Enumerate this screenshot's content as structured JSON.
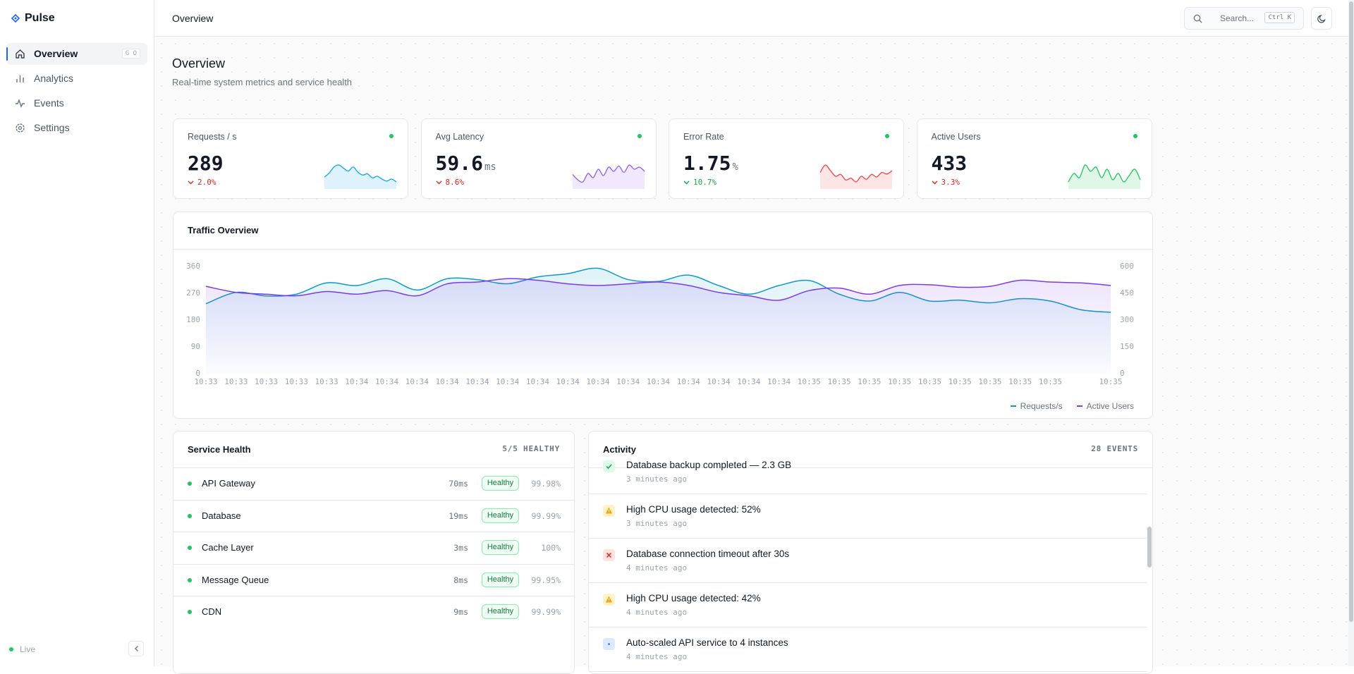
{
  "sidebar": {
    "brand": "Pulse",
    "nav": [
      {
        "label": "Overview",
        "shortcut": "G O"
      },
      {
        "label": "Analytics"
      },
      {
        "label": "Events"
      },
      {
        "label": "Settings"
      }
    ],
    "status": "Live"
  },
  "header": {
    "title": "Overview",
    "search": "Search...",
    "shortcut": "Ctrl K"
  },
  "page": {
    "title": "Overview",
    "subtitle": "Real-time system metrics and service health"
  },
  "kpis": [
    {
      "label": "Requests / s",
      "value": "289",
      "delta": "2.0%",
      "good": false,
      "color": "#0ea5e9",
      "spark": [
        260,
        270,
        285,
        290,
        282,
        275,
        285,
        272,
        265,
        268,
        258,
        262,
        255,
        250,
        255,
        248
      ]
    },
    {
      "label": "Avg Latency",
      "value": "59.6",
      "unit": "ms",
      "delta": "8.6%",
      "good": false,
      "color": "#8b5cf6",
      "spark": [
        55,
        50,
        48,
        56,
        52,
        60,
        54,
        62,
        58,
        63,
        57,
        64,
        60,
        62,
        58
      ]
    },
    {
      "label": "Error Rate",
      "value": "1.75",
      "unit": "%",
      "delta": "10.7%",
      "good": true,
      "color": "#ef4444",
      "spark": [
        1.9,
        2.1,
        1.95,
        1.8,
        1.85,
        1.7,
        1.75,
        1.65,
        1.8,
        1.72,
        1.85,
        1.78,
        1.9,
        1.86,
        1.95
      ]
    },
    {
      "label": "Active Users",
      "value": "433",
      "delta": "3.3%",
      "good": false,
      "color": "#22c55e",
      "spark": [
        420,
        440,
        430,
        460,
        445,
        455,
        430,
        450,
        425,
        440,
        420,
        435,
        450,
        425
      ]
    }
  ],
  "chart_data": {
    "type": "line",
    "title": "Traffic Overview",
    "categories": [
      "10:33",
      "10:33",
      "10:33",
      "10:33",
      "10:33",
      "10:34",
      "10:34",
      "10:34",
      "10:34",
      "10:34",
      "10:34",
      "10:34",
      "10:34",
      "10:34",
      "10:34",
      "10:34",
      "10:34",
      "10:34",
      "10:34",
      "10:34",
      "10:35",
      "10:35",
      "10:35",
      "10:35",
      "10:35",
      "10:35",
      "10:35",
      "10:35",
      "10:35",
      null,
      "10:35"
    ],
    "series": [
      {
        "name": "Requests/s",
        "color": "#0e9ac8",
        "values": [
          235,
          273,
          261,
          267,
          305,
          296,
          319,
          281,
          319,
          316,
          302,
          325,
          336,
          354,
          316,
          310,
          331,
          296,
          267,
          296,
          313,
          267,
          244,
          273,
          244,
          247,
          238,
          252,
          244,
          215,
          206
        ]
      },
      {
        "name": "Active Users",
        "color": "#7c3aed",
        "axis": "y2",
        "values": [
          489,
          455,
          445,
          436,
          460,
          445,
          465,
          436,
          503,
          513,
          532,
          523,
          503,
          494,
          503,
          513,
          494,
          455,
          436,
          411,
          465,
          479,
          445,
          494,
          498,
          484,
          489,
          523,
          513,
          508,
          494
        ]
      }
    ],
    "ylim": [
      0,
      360
    ],
    "yticks": [
      0,
      90,
      180,
      270,
      360
    ],
    "y2lim": [
      0,
      600
    ],
    "y2ticks": [
      0,
      150,
      300,
      450,
      600
    ],
    "legend": "bottom-right"
  },
  "services": {
    "title": "Service Health",
    "summary": "5/5 HEALTHY",
    "rows": [
      {
        "name": "API Gateway",
        "latency": "70ms",
        "status": "Healthy",
        "uptime": "99.98%"
      },
      {
        "name": "Database",
        "latency": "19ms",
        "status": "Healthy",
        "uptime": "99.99%"
      },
      {
        "name": "Cache Layer",
        "latency": "3ms",
        "status": "Healthy",
        "uptime": "100%"
      },
      {
        "name": "Message Queue",
        "latency": "8ms",
        "status": "Healthy",
        "uptime": "99.95%"
      },
      {
        "name": "CDN",
        "latency": "9ms",
        "status": "Healthy",
        "uptime": "99.99%"
      }
    ]
  },
  "activity": {
    "title": "Activity",
    "summary": "28 EVENTS",
    "items": [
      {
        "kind": "success",
        "text": "Database backup completed — 2.3 GB",
        "time": "3 minutes ago"
      },
      {
        "kind": "warning",
        "text": "High CPU usage detected: 52%",
        "time": "3 minutes ago"
      },
      {
        "kind": "error",
        "text": "Database connection timeout after 30s",
        "time": "4 minutes ago"
      },
      {
        "kind": "warning",
        "text": "High CPU usage detected: 42%",
        "time": "4 minutes ago"
      },
      {
        "kind": "info",
        "text": "Auto-scaled API service to 4 instances",
        "time": "4 minutes ago"
      }
    ]
  }
}
